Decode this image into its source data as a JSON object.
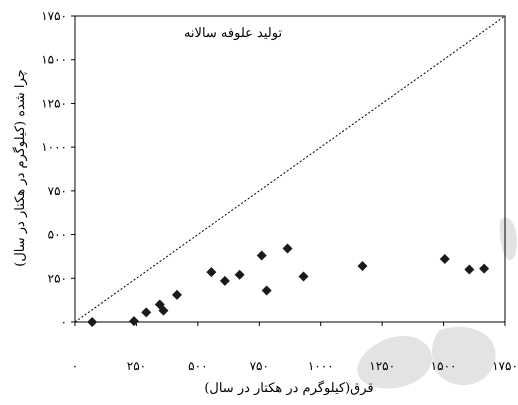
{
  "chart_data": {
    "type": "scatter",
    "title": "تولید علوفه سالانه",
    "xlabel": "قرق(کیلوگرم در هکتار در سال)",
    "ylabel": "چرا شده (کیلوگرم در هکتار در سال)",
    "xlim": [
      0,
      1750
    ],
    "ylim": [
      0,
      1750
    ],
    "x_ticks": [
      0,
      250,
      500,
      750,
      1000,
      1250,
      1500,
      1750
    ],
    "y_ticks": [
      0,
      250,
      500,
      750,
      1000,
      1250,
      1500,
      1750
    ],
    "x_tick_labels": [
      "۰",
      "۲۵۰",
      "۵۰۰",
      "۷۵۰",
      "۱۰۰۰",
      "۱۲۵۰",
      "۱۵۰۰",
      "۱۷۵۰"
    ],
    "y_tick_labels": [
      "۰",
      "۲۵۰",
      "۵۰۰",
      "۷۵۰",
      "۱۰۰۰",
      "۱۲۵۰",
      "۱۵۰۰",
      "۱۷۵۰"
    ],
    "reference_line": {
      "style": "dotted",
      "from": [
        0,
        0
      ],
      "to": [
        1750,
        1750
      ]
    },
    "grid": false,
    "legend": "none",
    "marker": "diamond",
    "marker_color": "#1a1a1a",
    "series": [
      {
        "points": [
          [
            70,
            0
          ],
          [
            240,
            5
          ],
          [
            290,
            55
          ],
          [
            345,
            100
          ],
          [
            360,
            65
          ],
          [
            415,
            155
          ],
          [
            555,
            285
          ],
          [
            610,
            235
          ],
          [
            670,
            270
          ],
          [
            760,
            380
          ],
          [
            780,
            180
          ],
          [
            865,
            420
          ],
          [
            930,
            260
          ],
          [
            1170,
            320
          ],
          [
            1505,
            360
          ],
          [
            1605,
            300
          ],
          [
            1665,
            305
          ]
        ]
      }
    ]
  }
}
